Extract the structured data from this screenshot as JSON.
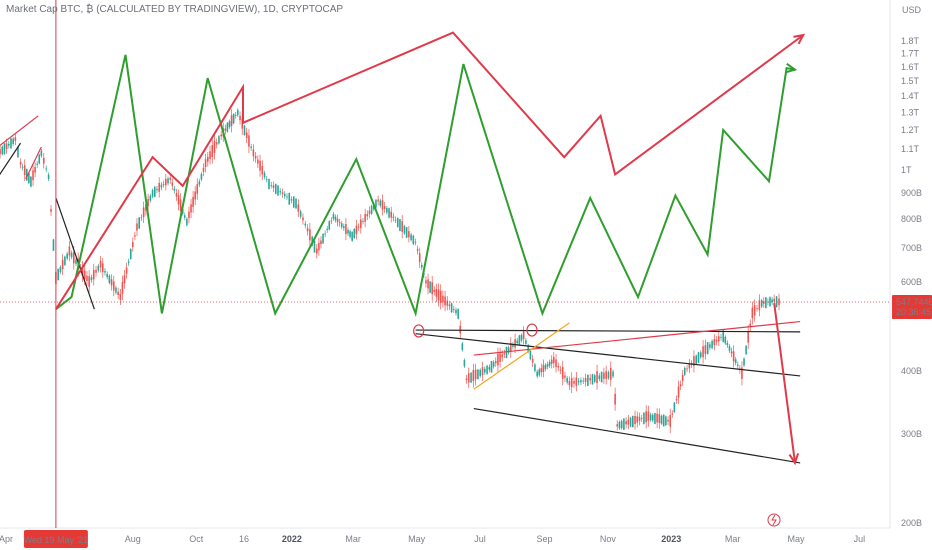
{
  "header": {
    "title": "Market Cap BTC, ₿ (CALCULATED BY TRADINGVIEW), 1D, CRYPTOCAP"
  },
  "chart_data": {
    "type": "line",
    "currency_label": "USD",
    "y_scale": "log",
    "y_ticks": [
      {
        "v": 200,
        "label": "200B"
      },
      {
        "v": 300,
        "label": "300B"
      },
      {
        "v": 400,
        "label": "400B"
      },
      {
        "v": 600,
        "label": "600B"
      },
      {
        "v": 700,
        "label": "700B"
      },
      {
        "v": 800,
        "label": "800B"
      },
      {
        "v": 900,
        "label": "900B"
      },
      {
        "v": 1000,
        "label": "1T"
      },
      {
        "v": 1100,
        "label": "1.1T"
      },
      {
        "v": 1200,
        "label": "1.2T"
      },
      {
        "v": 1300,
        "label": "1.3T"
      },
      {
        "v": 1400,
        "label": "1.4T"
      },
      {
        "v": 1500,
        "label": "1.5T"
      },
      {
        "v": 1600,
        "label": "1.6T"
      },
      {
        "v": 1700,
        "label": "1.7T"
      },
      {
        "v": 1800,
        "label": "1.8T"
      }
    ],
    "x_ticks": [
      {
        "d": "2021-04-01",
        "label": "Apr",
        "bold": false
      },
      {
        "d": "2021-08-01",
        "label": "Aug",
        "bold": false
      },
      {
        "d": "2021-10-01",
        "label": "Oct",
        "bold": false
      },
      {
        "d": "2021-11-16",
        "label": "16",
        "bold": false
      },
      {
        "d": "2022-01-01",
        "label": "2022",
        "bold": true
      },
      {
        "d": "2022-03-01",
        "label": "Mar",
        "bold": false
      },
      {
        "d": "2022-05-01",
        "label": "May",
        "bold": false
      },
      {
        "d": "2022-07-01",
        "label": "Jul",
        "bold": false
      },
      {
        "d": "2022-09-01",
        "label": "Sep",
        "bold": false
      },
      {
        "d": "2022-11-01",
        "label": "Nov",
        "bold": false
      },
      {
        "d": "2023-01-01",
        "label": "2023",
        "bold": true
      },
      {
        "d": "2023-03-01",
        "label": "Mar",
        "bold": false
      },
      {
        "d": "2023-05-01",
        "label": "May",
        "bold": false
      },
      {
        "d": "2023-07-01",
        "label": "Jul",
        "bold": false
      }
    ],
    "crosshair": {
      "date": "2021-05-19",
      "label": "Wed 19 May '21"
    },
    "current_price": {
      "value": 547.744,
      "label": "547.744B",
      "countdown": "20:36:45"
    },
    "series": [
      {
        "color": "#2e9e2e",
        "points": [
          [
            "2021-05-19",
            530
          ],
          [
            "2021-06-03",
            560
          ],
          [
            "2021-07-25",
            1690
          ],
          [
            "2021-08-29",
            520
          ],
          [
            "2021-10-12",
            1520
          ],
          [
            "2021-12-16",
            520
          ],
          [
            "2022-03-04",
            1050
          ],
          [
            "2022-04-30",
            520
          ],
          [
            "2022-06-15",
            1620
          ],
          [
            "2022-08-30",
            520
          ],
          [
            "2022-10-15",
            880
          ],
          [
            "2022-11-30",
            560
          ],
          [
            "2023-01-05",
            890
          ],
          [
            "2023-02-05",
            680
          ],
          [
            "2023-02-20",
            1200
          ],
          [
            "2023-04-05",
            950
          ],
          [
            "2023-04-22",
            1590
          ],
          [
            "2023-04-30",
            1580
          ]
        ]
      },
      {
        "color": "#e03a4a",
        "points": [
          [
            "2021-05-19",
            530
          ],
          [
            "2021-08-20",
            1060
          ],
          [
            "2021-09-18",
            930
          ],
          [
            "2021-11-15",
            1460
          ],
          [
            "2021-11-15",
            1240
          ],
          [
            "2022-06-05",
            1870
          ],
          [
            "2022-09-20",
            1060
          ],
          [
            "2022-10-25",
            1280
          ],
          [
            "2022-11-08",
            980
          ],
          [
            "2023-05-08",
            1850
          ]
        ]
      },
      {
        "color": "#e03a4a",
        "points": [
          [
            "2023-04-10",
            545
          ],
          [
            "2023-04-30",
            263
          ]
        ]
      }
    ],
    "trendlines": [
      {
        "color": "#222222",
        "points": [
          [
            "2022-04-30",
            482
          ],
          [
            "2023-05-05",
            478
          ]
        ]
      },
      {
        "color": "#222222",
        "points": [
          [
            "2022-04-30",
            474
          ],
          [
            "2023-05-05",
            391
          ]
        ]
      },
      {
        "color": "#222222",
        "points": [
          [
            "2022-06-25",
            337
          ],
          [
            "2023-05-05",
            263
          ]
        ]
      },
      {
        "color": "#e03a4a",
        "points": [
          [
            "2022-06-25",
            430
          ],
          [
            "2023-05-05",
            501
          ]
        ]
      },
      {
        "color": "#f5a623",
        "points": [
          [
            "2022-06-25",
            368
          ],
          [
            "2022-09-25",
            498
          ]
        ]
      },
      {
        "color": "#e03a4a",
        "points": [
          [
            "2021-03-01",
            1020
          ],
          [
            "2021-05-02",
            1280
          ]
        ]
      },
      {
        "color": "#222222",
        "points": [
          [
            "2021-03-01",
            820
          ],
          [
            "2021-04-15",
            1130
          ]
        ]
      },
      {
        "color": "#e03a4a",
        "points": [
          [
            "2021-04-20",
            960
          ],
          [
            "2021-05-05",
            1110
          ]
        ]
      },
      {
        "color": "#222222",
        "points": [
          [
            "2021-05-19",
            880
          ],
          [
            "2021-06-25",
            530
          ]
        ]
      }
    ],
    "markers": [
      {
        "date": "2022-05-03",
        "value": 480,
        "color": "#e03a4a"
      },
      {
        "date": "2022-08-20",
        "value": 482,
        "color": "#e03a4a"
      }
    ]
  }
}
